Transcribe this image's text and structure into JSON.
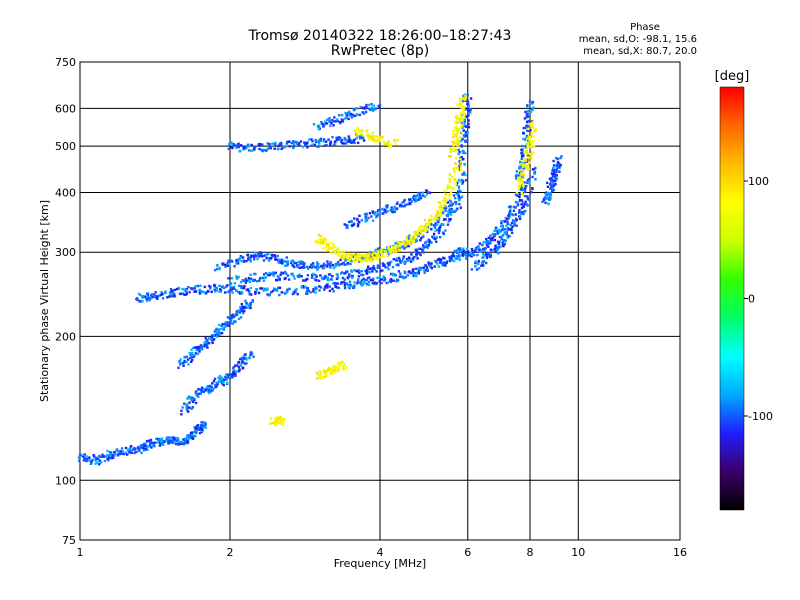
{
  "chart_data": {
    "type": "scatter",
    "title": "Tromsø 20140322 18:26:00–18:27:43",
    "subtitle": "RwPretec (8p)",
    "xlabel": "Frequency [MHz]",
    "ylabel": "Stationary phase Virtual Height [km]",
    "x_scale": "log",
    "y_scale": "log",
    "xlim": [
      1,
      16
    ],
    "ylim": [
      75,
      750
    ],
    "x_ticks": [
      1,
      2,
      4,
      6,
      8,
      10,
      16
    ],
    "y_ticks": [
      75,
      100,
      200,
      300,
      400,
      500,
      600,
      750
    ],
    "grid": true,
    "stats": {
      "heading": "Phase",
      "line_o": "mean, sd,O: -98.1, 15.6",
      "line_x": "mean, sd,X: 80.7, 20.0"
    },
    "colorbar": {
      "label": "[deg]",
      "ticks": [
        100,
        0,
        -100
      ],
      "range": [
        -180,
        180
      ],
      "colors": [
        "#000000",
        "#3b006a",
        "#1e1eff",
        "#00aaff",
        "#00ffff",
        "#00ff66",
        "#33ff00",
        "#ccff00",
        "#ffff00",
        "#ffbb00",
        "#ff6600",
        "#ff0000"
      ]
    },
    "series": [
      {
        "mode": "O",
        "mean_phase": -98.1,
        "traces": [
          {
            "x": [
              1.0,
              1.08,
              1.15,
              1.25,
              1.35,
              1.42,
              1.5,
              1.58,
              1.65,
              1.72,
              1.78
            ],
            "y": [
              112,
              110,
              113,
              115,
              117,
              120,
              121,
              121,
              122,
              128,
              130
            ]
          },
          {
            "x": [
              1.62,
              1.7,
              1.8,
              1.9,
              2.0,
              2.1,
              2.2
            ],
            "y": [
              140,
              150,
              155,
              160,
              165,
              175,
              185
            ]
          },
          {
            "x": [
              1.3,
              1.4,
              1.55,
              1.7,
              1.9,
              2.1,
              2.4,
              2.8,
              3.2,
              3.6,
              4.0,
              4.4,
              4.8,
              5.2,
              5.6,
              5.9
            ],
            "y": [
              240,
              243,
              247,
              250,
              252,
              250,
              248,
              250,
              253,
              258,
              262,
              268,
              275,
              283,
              292,
              302
            ]
          },
          {
            "x": [
              2.0,
              2.3,
              2.6,
              3.0,
              3.4,
              3.8,
              4.2,
              4.6,
              5.0,
              5.4,
              5.8
            ],
            "y": [
              262,
              266,
              268,
              265,
              268,
              274,
              282,
              292,
              310,
              340,
              390
            ]
          },
          {
            "x": [
              1.9,
              2.1,
              2.3,
              2.5,
              2.7,
              3.0,
              3.3,
              3.6,
              4.0,
              4.4,
              4.8,
              5.2,
              5.6,
              5.9
            ],
            "y": [
              280,
              290,
              295,
              290,
              283,
              280,
              285,
              292,
              300,
              310,
              325,
              345,
              380,
              440
            ]
          },
          {
            "x": [
              5.8,
              5.9,
              5.95,
              6.0
            ],
            "y": [
              450,
              520,
              580,
              640
            ]
          },
          {
            "x": [
              2.0,
              2.2,
              2.5,
              2.8,
              3.1,
              3.4,
              3.7
            ],
            "y": [
              500,
              495,
              500,
              505,
              510,
              515,
              520
            ]
          },
          {
            "x": [
              3.0,
              3.3,
              3.6,
              4.0
            ],
            "y": [
              550,
              570,
              590,
              610
            ]
          },
          {
            "x": [
              3.4,
              3.8,
              4.2,
              4.6,
              5.0
            ],
            "y": [
              340,
              355,
              370,
              385,
              400
            ]
          },
          {
            "x": [
              5.8,
              6.2,
              6.6,
              7.0,
              7.4,
              7.8
            ],
            "y": [
              295,
              300,
              315,
              335,
              370,
              420
            ]
          },
          {
            "x": [
              6.2,
              6.6,
              7.0,
              7.4,
              7.8,
              8.2
            ],
            "y": [
              280,
              295,
              310,
              340,
              380,
              450
            ]
          },
          {
            "x": [
              7.6,
              7.8,
              7.9,
              8.0
            ],
            "y": [
              430,
              480,
              540,
              620
            ]
          },
          {
            "x": [
              8.6,
              8.8,
              9.0,
              9.1
            ],
            "y": [
              380,
              410,
              440,
              470
            ]
          },
          {
            "x": [
              1.6,
              1.7,
              1.8,
              1.9,
              2.0,
              2.1,
              2.2
            ],
            "y": [
              175,
              185,
              195,
              205,
              215,
              225,
              235
            ]
          }
        ]
      },
      {
        "mode": "X",
        "mean_phase": 80.7,
        "traces": [
          {
            "x": [
              3.0,
              3.2,
              3.4,
              3.6,
              3.8,
              4.0,
              4.3,
              4.6,
              4.9,
              5.2,
              5.5,
              5.8
            ],
            "y": [
              320,
              305,
              295,
              290,
              292,
              297,
              305,
              318,
              335,
              360,
              400,
              470
            ]
          },
          {
            "x": [
              5.6,
              5.7,
              5.8,
              5.85
            ],
            "y": [
              480,
              530,
              580,
              630
            ]
          },
          {
            "x": [
              7.6,
              7.8,
              8.0,
              8.1
            ],
            "y": [
              400,
              450,
              500,
              560
            ]
          },
          {
            "x": [
              3.0,
              3.2,
              3.4
            ],
            "y": [
              165,
              170,
              175
            ]
          },
          {
            "x": [
              2.45,
              2.55
            ],
            "y": [
              133,
              133
            ]
          },
          {
            "x": [
              3.6,
              3.9,
              4.3
            ],
            "y": [
              540,
              520,
              505
            ]
          }
        ]
      }
    ]
  }
}
